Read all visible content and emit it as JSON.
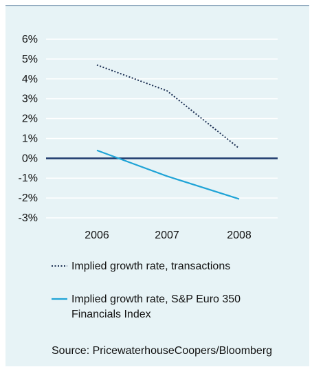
{
  "chart_data": {
    "type": "line",
    "categories": [
      "2006",
      "2007",
      "2008"
    ],
    "y_ticks": [
      "6%",
      "5%",
      "4%",
      "3%",
      "2%",
      "1%",
      "0%",
      "-1%",
      "-2%",
      "-3%"
    ],
    "ylim": [
      -3,
      6
    ],
    "grid": true,
    "series": [
      {
        "name": "Implied growth rate, transactions",
        "name_lines": [
          "Implied growth rate, transactions"
        ],
        "values": [
          4.7,
          3.4,
          0.5
        ],
        "style": "dotted",
        "color": "#1a2e52"
      },
      {
        "name": "Implied growth rate, S&P Euro 350 Financials Index",
        "name_lines": [
          "Implied growth rate, S&P Euro 350",
          "Financials Index"
        ],
        "values": [
          0.4,
          -0.9,
          -2.05
        ],
        "style": "solid",
        "color": "#1ea3d6"
      }
    ],
    "zero_line_color": "#1f3a6e",
    "source": "Source: PricewaterhouseCoopers/Bloomberg"
  }
}
